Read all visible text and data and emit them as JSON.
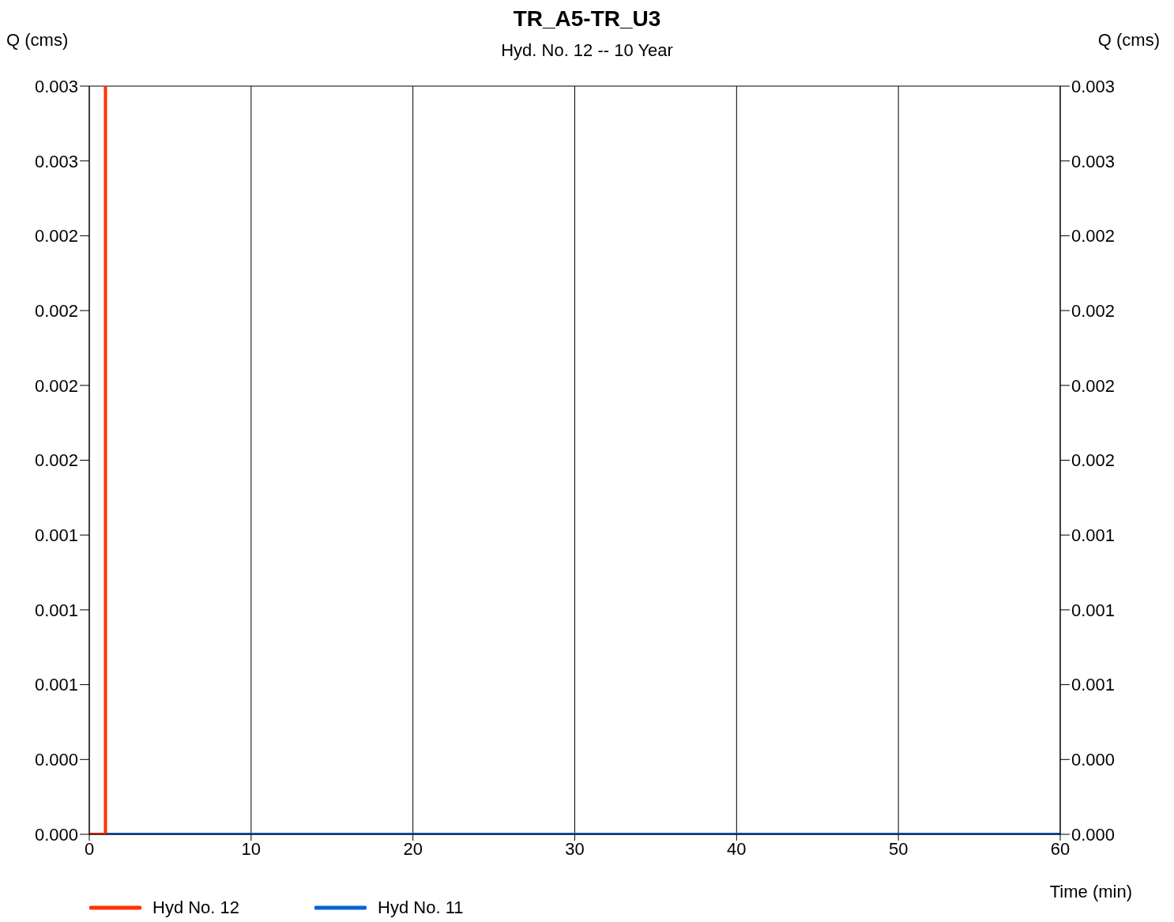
{
  "chart_data": {
    "type": "line",
    "title": "TR_A5-TR_U3",
    "subtitle": "Hyd. No. 12 -- 10 Year",
    "xlabel": "Time (min)",
    "ylabel": "Q (cms)",
    "y2label": "Q (cms)",
    "xlim": [
      0,
      60
    ],
    "xticks": [
      0,
      10,
      20,
      30,
      40,
      50,
      60
    ],
    "ylim": [
      0,
      0.003
    ],
    "yticks": [
      {
        "value": 0,
        "label": "0.000"
      },
      {
        "value": 0.0003,
        "label": "0.000"
      },
      {
        "value": 0.0006,
        "label": "0.001"
      },
      {
        "value": 0.0009,
        "label": "0.001"
      },
      {
        "value": 0.0012,
        "label": "0.001"
      },
      {
        "value": 0.0015,
        "label": "0.002"
      },
      {
        "value": 0.0018,
        "label": "0.002"
      },
      {
        "value": 0.0021,
        "label": "0.002"
      },
      {
        "value": 0.0024,
        "label": "0.002"
      },
      {
        "value": 0.0027,
        "label": "0.003"
      },
      {
        "value": 0.003,
        "label": "0.003"
      }
    ],
    "y2lim": [
      0,
      0.003
    ],
    "y2ticks": [
      {
        "value": 0,
        "label": "0.000"
      },
      {
        "value": 0.0003,
        "label": "0.000"
      },
      {
        "value": 0.0006,
        "label": "0.001"
      },
      {
        "value": 0.0009,
        "label": "0.001"
      },
      {
        "value": 0.0012,
        "label": "0.001"
      },
      {
        "value": 0.0015,
        "label": "0.002"
      },
      {
        "value": 0.0018,
        "label": "0.002"
      },
      {
        "value": 0.0021,
        "label": "0.002"
      },
      {
        "value": 0.0024,
        "label": "0.002"
      },
      {
        "value": 0.0027,
        "label": "0.003"
      },
      {
        "value": 0.003,
        "label": "0.003"
      }
    ],
    "grid": true,
    "legend": "bottom left",
    "marker": "none",
    "line_style": "solid",
    "series": [
      {
        "name": "Hyd No. 11",
        "color": "#0066cc",
        "x": [
          0,
          60
        ],
        "values": [
          0,
          0
        ]
      },
      {
        "name": "Hyd No. 12",
        "color": "#ff3300",
        "x": [
          0,
          1,
          1
        ],
        "values": [
          0,
          0,
          0.003
        ]
      }
    ]
  }
}
